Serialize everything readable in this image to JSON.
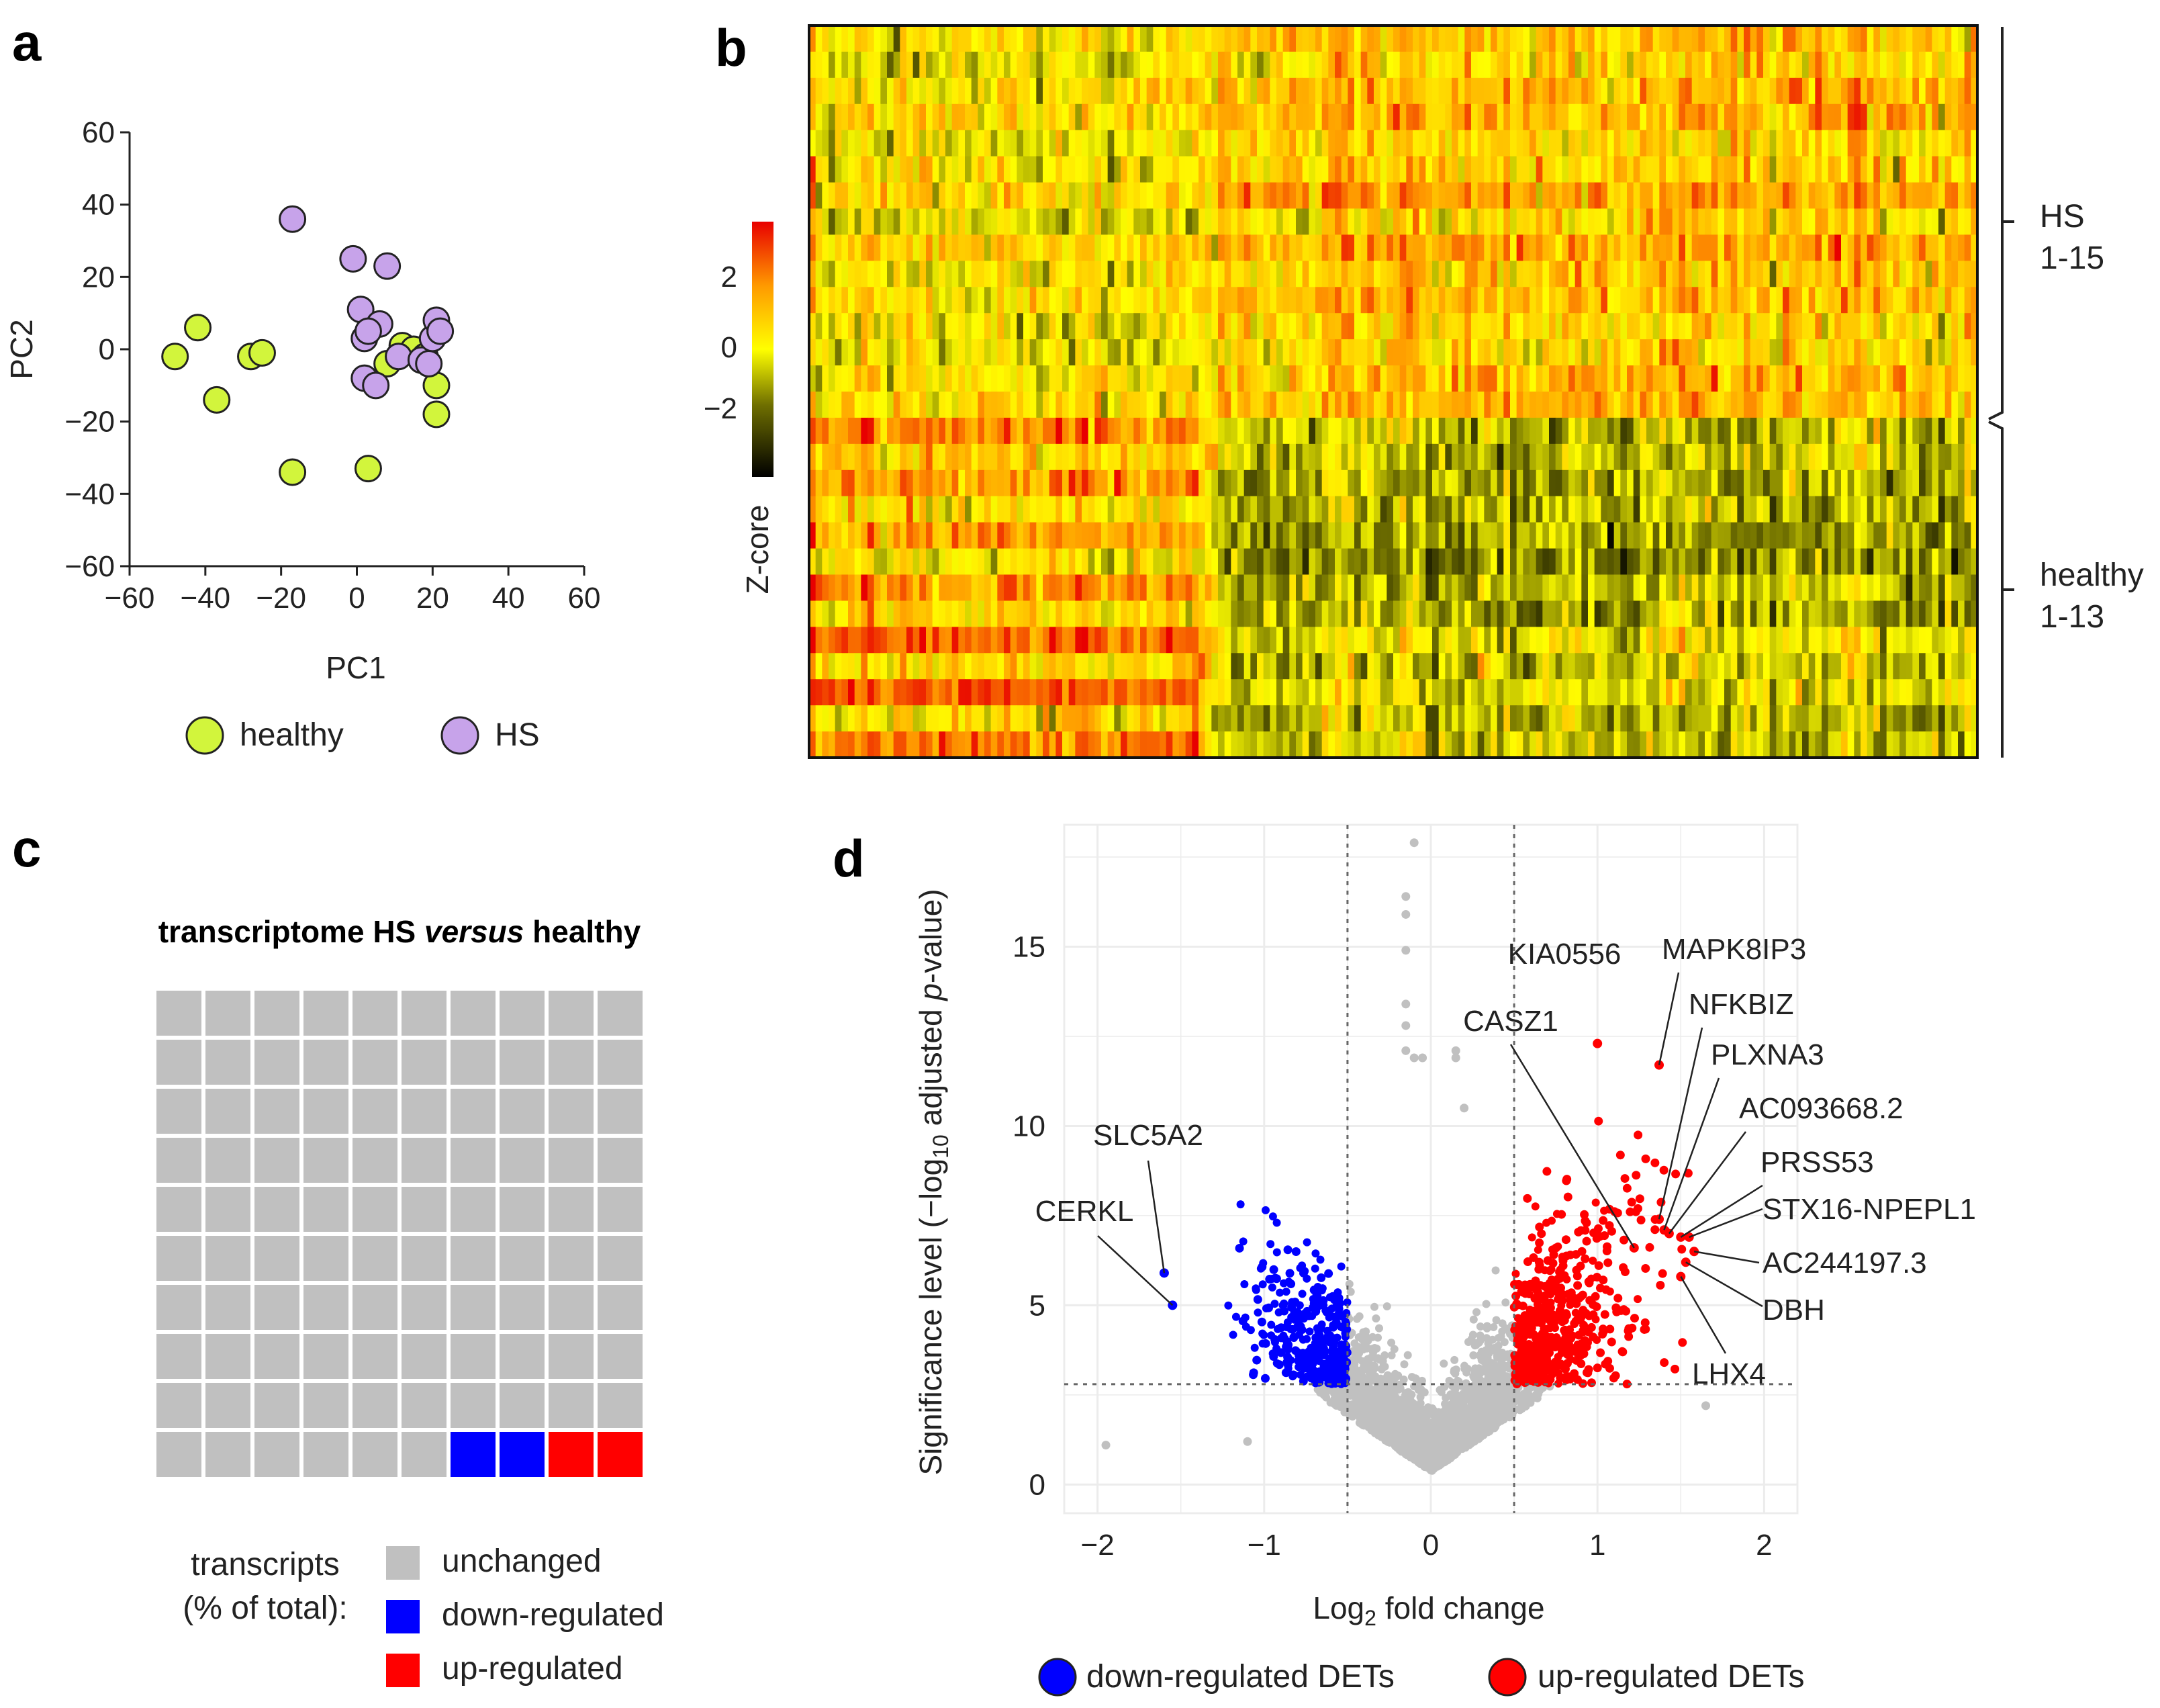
{
  "panels": {
    "a": "a",
    "b": "b",
    "c": "c",
    "d": "d"
  },
  "colors": {
    "healthy": "#d2f53c",
    "hs": "#c7a3ea",
    "down": "#0000ff",
    "up": "#ff0000",
    "grey": "#c0c0c0"
  },
  "chart_data": [
    {
      "id": "a",
      "type": "scatter",
      "title": "",
      "xlabel": "PC1",
      "ylabel": "PC2",
      "xlim": [
        -60,
        60
      ],
      "ylim": [
        -60,
        60
      ],
      "xticks": [
        "−60",
        "−40",
        "−20",
        "0",
        "20",
        "40",
        "60"
      ],
      "yticks": [
        "60",
        "40",
        "20",
        "0",
        "−20",
        "−40",
        "−60"
      ],
      "series": [
        {
          "name": "healthy",
          "points": [
            [
              -48,
              -2
            ],
            [
              -42,
              6
            ],
            [
              -37,
              -14
            ],
            [
              -28,
              -2
            ],
            [
              -25,
              -1
            ],
            [
              -17,
              -34
            ],
            [
              3,
              -33
            ],
            [
              8,
              -4
            ],
            [
              12,
              1
            ],
            [
              15,
              0
            ],
            [
              18,
              -2
            ],
            [
              21,
              -10
            ],
            [
              21,
              -18
            ]
          ]
        },
        {
          "name": "HS",
          "points": [
            [
              -17,
              36
            ],
            [
              -1,
              25
            ],
            [
              8,
              23
            ],
            [
              1,
              11
            ],
            [
              6,
              7
            ],
            [
              2,
              3
            ],
            [
              3,
              5
            ],
            [
              2,
              -8
            ],
            [
              5,
              -10
            ],
            [
              11,
              -2
            ],
            [
              17,
              -3
            ],
            [
              20,
              3
            ],
            [
              21,
              8
            ],
            [
              22,
              5
            ],
            [
              19,
              -4
            ]
          ]
        }
      ],
      "legend": [
        "healthy",
        "HS"
      ]
    },
    {
      "id": "b",
      "type": "heatmap",
      "colorbar_label": "Z-core",
      "colorbar_ticks": [
        "2",
        "0",
        "−2"
      ],
      "zlim": [
        -3,
        3
      ],
      "groups": [
        {
          "label1": "HS",
          "label2": "1-15",
          "rows": 15
        },
        {
          "label1": "healthy",
          "label2": "1-13",
          "rows": 13
        }
      ],
      "columns": 180
    },
    {
      "id": "c",
      "type": "waffle",
      "title_parts": [
        "transcriptome HS ",
        "versus",
        " healthy"
      ],
      "grid_cols": 10,
      "grid_rows": 10,
      "categories": [
        "unchanged",
        "down-regulated",
        "up-regulated"
      ],
      "values": [
        96,
        2,
        2
      ],
      "legend_title_line1": "transcripts",
      "legend_title_line2": "(% of total):"
    },
    {
      "id": "d",
      "type": "scatter",
      "subtype": "volcano",
      "xlabel_pre": "Log",
      "xlabel_sub": "2",
      "xlabel_post": " fold change",
      "ylabel_pre": "Significance level (−log",
      "ylabel_sub": "10",
      "ylabel_mid": " adjusted ",
      "ylabel_p": "p",
      "ylabel_post": "-value)",
      "xlim": [
        -2.2,
        2.2
      ],
      "ylim": [
        -0.8,
        18.4
      ],
      "xticks": [
        "−2",
        "−1",
        "0",
        "1",
        "2"
      ],
      "yticks": [
        "0",
        "5",
        "10",
        "15"
      ],
      "fc_threshold": 0.5,
      "p_threshold": 2.8,
      "highlight_points": [
        {
          "gene": "SLC5A2",
          "x": -1.6,
          "y": 5.9,
          "group": "down"
        },
        {
          "gene": "CERKL",
          "x": -1.55,
          "y": 5.0,
          "group": "down"
        },
        {
          "gene": "KIA0556",
          "x": 1.0,
          "y": 12.3,
          "group": "up"
        },
        {
          "gene": "CASZ1",
          "x": 1.22,
          "y": 6.6,
          "group": "up"
        },
        {
          "gene": "MAPK8IP3",
          "x": 1.37,
          "y": 11.7,
          "group": "up"
        },
        {
          "gene": "NFKBIZ",
          "x": 1.37,
          "y": 7.4,
          "group": "up"
        },
        {
          "gene": "PLXNA3",
          "x": 1.4,
          "y": 7.1,
          "group": "up"
        },
        {
          "gene": "AC093668.2",
          "x": 1.43,
          "y": 7.0,
          "group": "up"
        },
        {
          "gene": "PRSS53",
          "x": 1.5,
          "y": 6.9,
          "group": "up"
        },
        {
          "gene": "STX16-NPEPL1",
          "x": 1.55,
          "y": 6.9,
          "group": "up"
        },
        {
          "gene": "AC244197.3",
          "x": 1.58,
          "y": 6.5,
          "group": "up"
        },
        {
          "gene": "DBH",
          "x": 1.53,
          "y": 6.2,
          "group": "up"
        },
        {
          "gene": "LHX4",
          "x": 1.5,
          "y": 5.8,
          "group": "up"
        }
      ],
      "grey_outliers": [
        [
          -0.1,
          17.9
        ],
        [
          -0.15,
          16.4
        ],
        [
          -0.15,
          15.9
        ],
        [
          -0.15,
          14.9
        ],
        [
          -0.15,
          13.4
        ],
        [
          -0.15,
          12.8
        ],
        [
          -0.15,
          12.1
        ],
        [
          -0.1,
          11.9
        ],
        [
          -0.05,
          11.9
        ],
        [
          0.15,
          12.1
        ],
        [
          0.15,
          11.9
        ],
        [
          0.2,
          10.5
        ],
        [
          -1.95,
          1.1
        ],
        [
          -1.1,
          1.2
        ],
        [
          1.65,
          2.2
        ]
      ],
      "legend": [
        "down-regulated DETs",
        "up-regulated DETs"
      ]
    }
  ]
}
